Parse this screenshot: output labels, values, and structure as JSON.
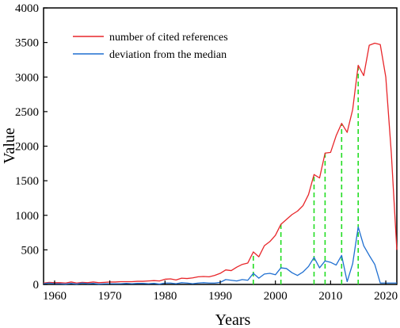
{
  "chart_data": {
    "type": "line",
    "title": "",
    "xlabel": "Years",
    "ylabel": "Value",
    "xlim": [
      1958,
      2022
    ],
    "ylim": [
      0,
      4000
    ],
    "x_ticks": [
      1960,
      1970,
      1980,
      1990,
      2000,
      2010,
      2020
    ],
    "y_ticks": [
      0,
      500,
      1000,
      1500,
      2000,
      2500,
      3000,
      3500,
      4000
    ],
    "x_tick_labels": [
      "1960",
      "1970",
      "1980",
      "1990",
      "2000",
      "2010",
      "2020"
    ],
    "y_tick_labels": [
      "0",
      "500",
      "1000",
      "1500",
      "2000",
      "2500",
      "3000",
      "3500",
      "4000"
    ],
    "grid": false,
    "legend_position": "top-left",
    "colors": {
      "series_1": "#e8262a",
      "series_2": "#1f6fd1",
      "markers": "#22dd22"
    },
    "series": [
      {
        "name": "number of cited references",
        "x": [
          1958,
          1959,
          1960,
          1961,
          1962,
          1963,
          1964,
          1965,
          1966,
          1967,
          1968,
          1969,
          1970,
          1971,
          1972,
          1973,
          1974,
          1975,
          1976,
          1977,
          1978,
          1979,
          1980,
          1981,
          1982,
          1983,
          1984,
          1985,
          1986,
          1987,
          1988,
          1989,
          1990,
          1991,
          1992,
          1993,
          1994,
          1995,
          1996,
          1997,
          1998,
          1999,
          2000,
          2001,
          2002,
          2003,
          2004,
          2005,
          2006,
          2007,
          2008,
          2009,
          2010,
          2011,
          2012,
          2013,
          2014,
          2015,
          2016,
          2017,
          2018,
          2019,
          2020,
          2021,
          2022
        ],
        "values": [
          20,
          30,
          25,
          25,
          20,
          35,
          20,
          30,
          25,
          35,
          25,
          30,
          35,
          35,
          40,
          40,
          40,
          45,
          45,
          50,
          55,
          50,
          75,
          80,
          65,
          90,
          85,
          95,
          110,
          115,
          110,
          130,
          160,
          210,
          200,
          250,
          290,
          310,
          470,
          400,
          560,
          620,
          710,
          870,
          940,
          1010,
          1060,
          1140,
          1300,
          1590,
          1540,
          1900,
          1910,
          2150,
          2330,
          2200,
          2530,
          3170,
          3020,
          3460,
          3490,
          3470,
          3000,
          1900,
          500
        ]
      },
      {
        "name": "deviation from the median",
        "x": [
          1958,
          1959,
          1960,
          1961,
          1962,
          1963,
          1964,
          1965,
          1966,
          1967,
          1968,
          1969,
          1970,
          1971,
          1972,
          1973,
          1974,
          1975,
          1976,
          1977,
          1978,
          1979,
          1980,
          1981,
          1982,
          1983,
          1984,
          1985,
          1986,
          1987,
          1988,
          1989,
          1990,
          1991,
          1992,
          1993,
          1994,
          1995,
          1996,
          1997,
          1998,
          1999,
          2000,
          2001,
          2002,
          2003,
          2004,
          2005,
          2006,
          2007,
          2008,
          2009,
          2010,
          2011,
          2012,
          2013,
          2014,
          2015,
          2016,
          2017,
          2018,
          2019,
          2020,
          2021,
          2022
        ],
        "values": [
          10,
          20,
          10,
          10,
          5,
          15,
          5,
          20,
          10,
          15,
          5,
          10,
          10,
          10,
          10,
          15,
          10,
          15,
          15,
          10,
          15,
          5,
          20,
          20,
          10,
          25,
          20,
          10,
          20,
          25,
          20,
          20,
          30,
          70,
          60,
          50,
          70,
          60,
          160,
          90,
          150,
          160,
          140,
          240,
          230,
          170,
          130,
          180,
          260,
          390,
          240,
          340,
          320,
          280,
          420,
          40,
          300,
          830,
          560,
          420,
          290,
          20,
          20,
          20,
          20
        ]
      }
    ],
    "annotations": {
      "description": "green dashed vertical lines",
      "years": [
        1996,
        2001,
        2007,
        2009,
        2012,
        2015
      ]
    }
  }
}
